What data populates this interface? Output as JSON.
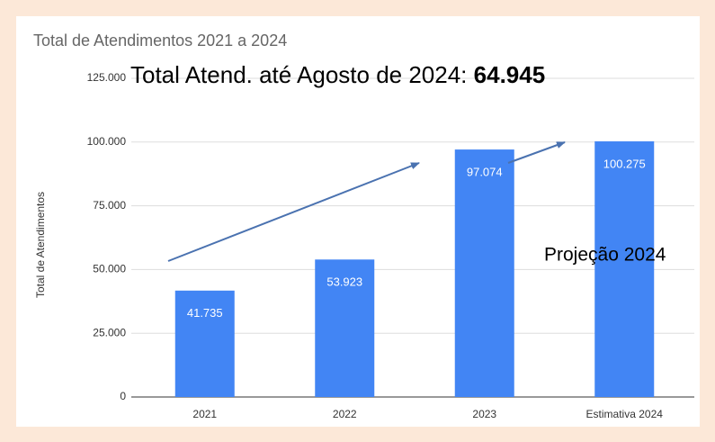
{
  "chart_data": {
    "type": "bar",
    "title": "Total de Atendimentos 2021 a 2024",
    "annotations": [
      {
        "text": "Total Atend. até Agosto de 2024:",
        "highlight": "64.945"
      },
      {
        "text": "Projeção 2024"
      }
    ],
    "ylabel": "Total de Atendimentos",
    "categories": [
      "2021",
      "2022",
      "2023",
      "Estimativa 2024"
    ],
    "values": [
      41735,
      53923,
      97074,
      100275
    ],
    "value_labels": [
      "41.735",
      "53.923",
      "97.074",
      "100.275"
    ],
    "color": "#4285f4",
    "ylim": [
      0,
      125000
    ],
    "yticks": [
      0,
      {
        "value": 25000,
        "label": "25.000"
      },
      {
        "value": 50000,
        "label": "50.000"
      },
      {
        "value": 75000,
        "label": "75.000"
      },
      {
        "value": 100000,
        "label": "100.000"
      },
      {
        "value": 125000,
        "label": "125.000"
      }
    ],
    "grid": true
  }
}
